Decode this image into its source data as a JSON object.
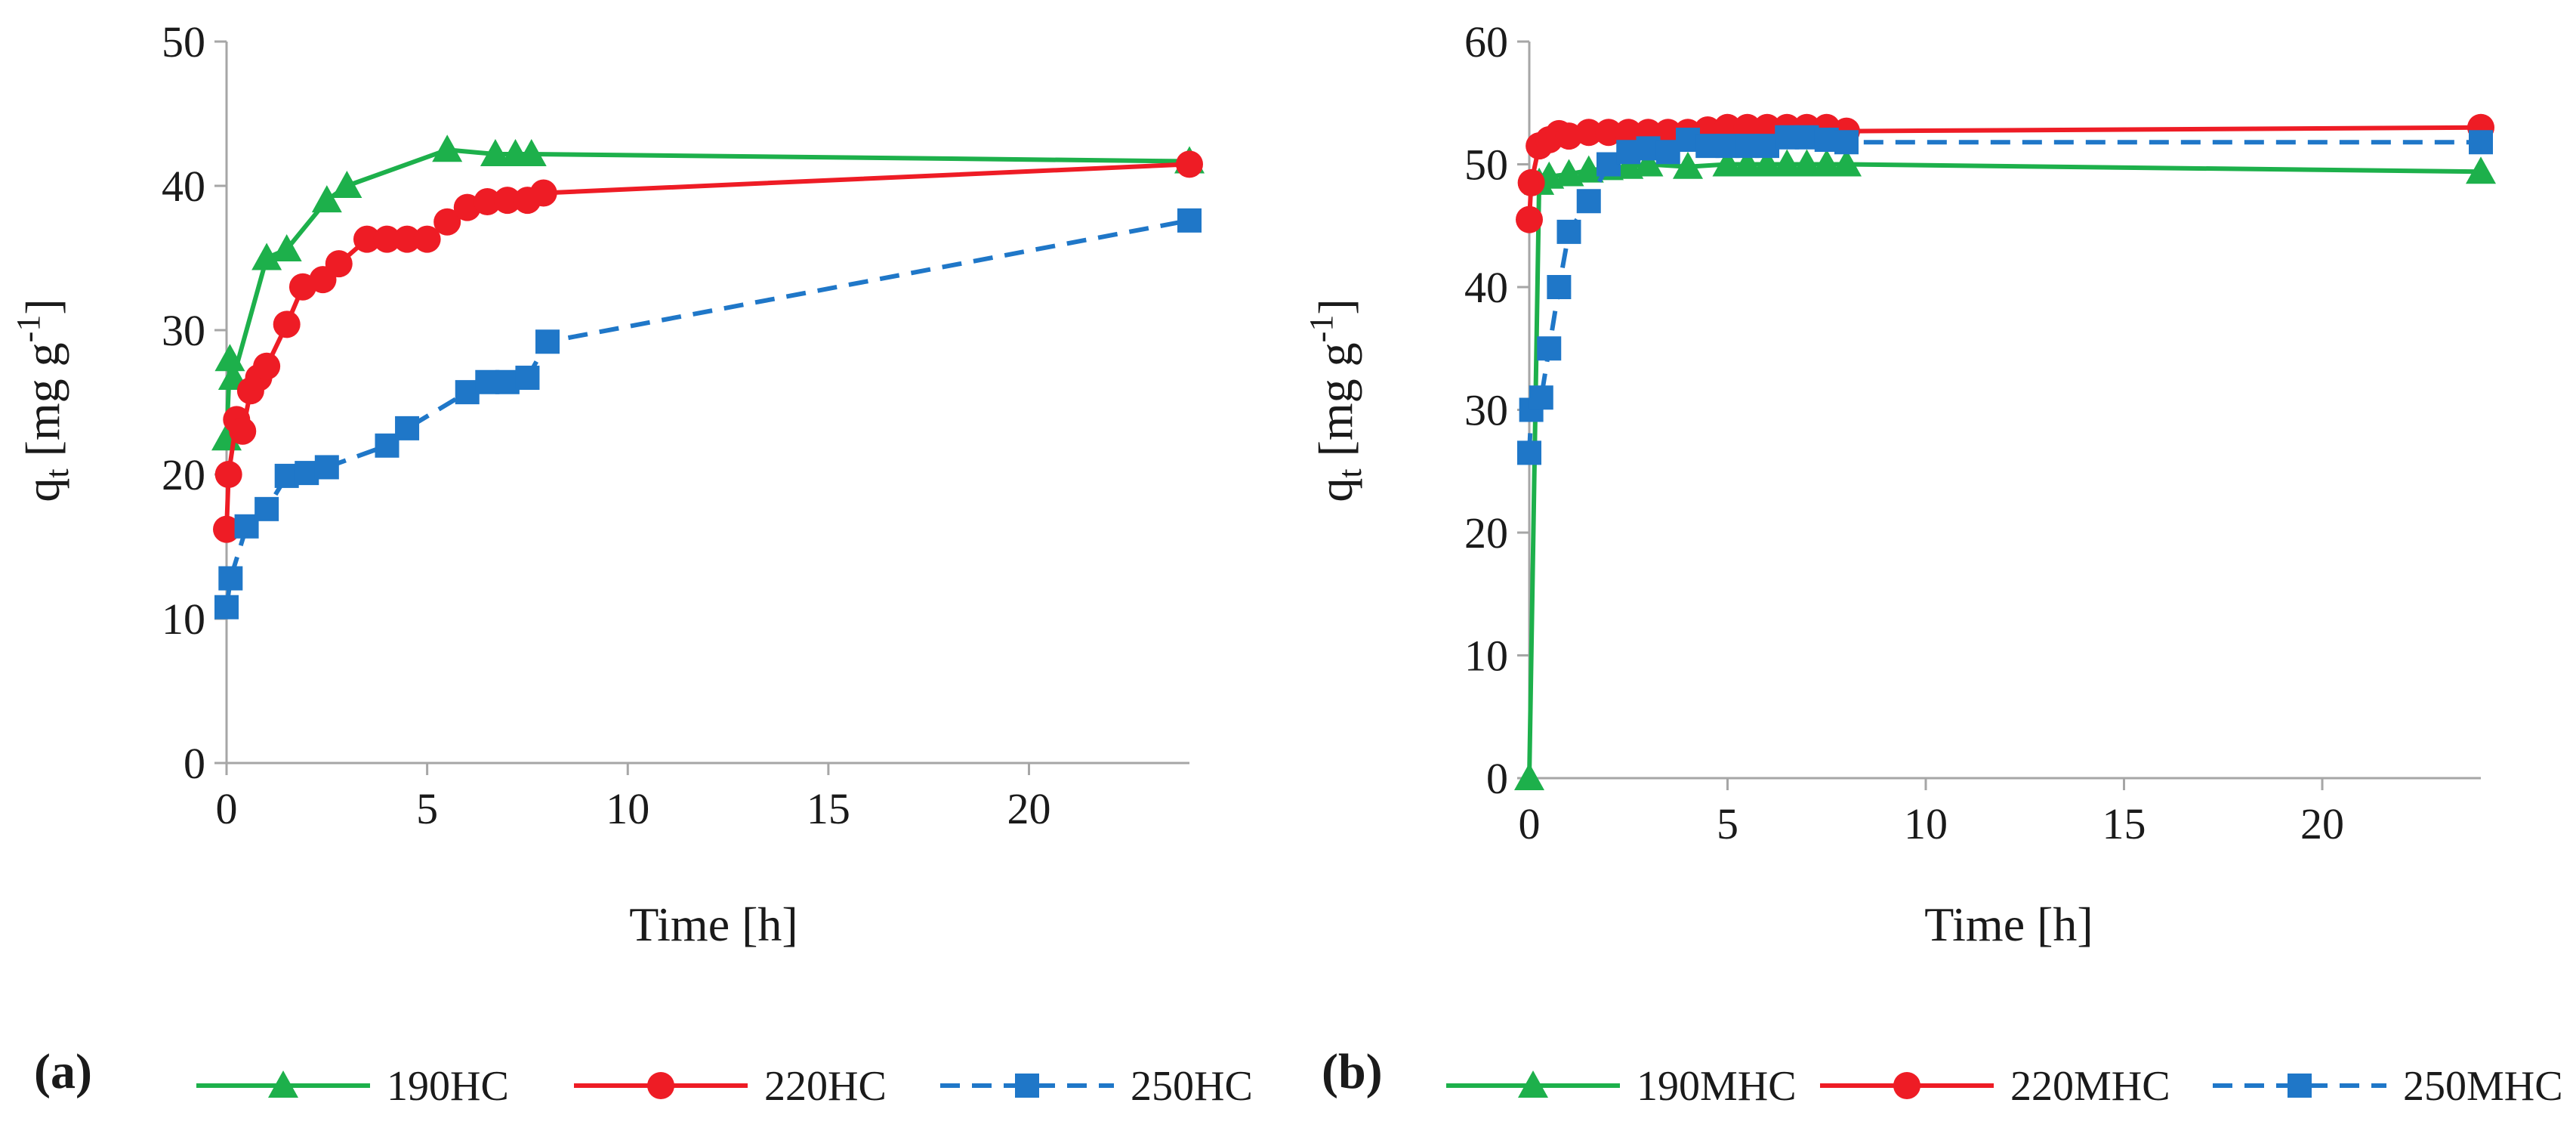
{
  "figure": {
    "panels": [
      {
        "label": "(a)"
      },
      {
        "label": "(b)"
      }
    ]
  },
  "chart_data": [
    {
      "type": "line",
      "panel_label": "(a)",
      "title": "",
      "xlabel": "Time [h]",
      "ylabel": "qt [mg g-1]",
      "ylabel_parts": {
        "q": "q",
        "sub": "t",
        "rest": " [mg g",
        "sup": "-1",
        "end": "]"
      },
      "xlim": [
        0,
        24
      ],
      "ylim": [
        0,
        50
      ],
      "xticks": [
        0,
        5,
        10,
        15,
        20
      ],
      "yticks": [
        0,
        10,
        20,
        30,
        40,
        50
      ],
      "grid": false,
      "legend_position": "bottom",
      "series": [
        {
          "name": "190HC",
          "color": "#1db04b",
          "marker": "triangle",
          "dash": "solid",
          "x": [
            0,
            0.083,
            0.167,
            1,
            1.5,
            2.5,
            3,
            5.5,
            6.7,
            7.2,
            7.6,
            24
          ],
          "y": [
            22.5,
            28,
            26.7,
            35,
            35.6,
            39,
            40,
            42.5,
            42.2,
            42.2,
            42.2,
            41.7
          ]
        },
        {
          "name": "220HC",
          "color": "#ee1c25",
          "marker": "circle",
          "dash": "solid",
          "x": [
            0,
            0.05,
            0.25,
            0.4,
            0.6,
            0.8,
            1,
            1.5,
            1.9,
            2.4,
            2.8,
            3.5,
            4,
            4.5,
            5,
            5.5,
            6,
            6.5,
            7,
            7.5,
            7.9,
            24
          ],
          "y": [
            16.2,
            20,
            23.8,
            23,
            25.8,
            26.7,
            27.5,
            30.4,
            33,
            33.5,
            34.6,
            36.3,
            36.3,
            36.3,
            36.3,
            37.5,
            38.5,
            38.9,
            39,
            39,
            39.5,
            41.5
          ]
        },
        {
          "name": "250HC",
          "color": "#1f77c8",
          "marker": "square",
          "dash": "dashed",
          "x": [
            0,
            0.1,
            0.5,
            1,
            1.5,
            2,
            2.5,
            4,
            4.5,
            6,
            6.5,
            7,
            7.5,
            8,
            24
          ],
          "y": [
            10.8,
            12.8,
            16.4,
            17.6,
            19.9,
            20.1,
            20.5,
            22,
            23.2,
            25.7,
            26.4,
            26.4,
            26.7,
            29.2,
            37.6
          ]
        }
      ]
    },
    {
      "type": "line",
      "panel_label": "(b)",
      "title": "",
      "xlabel": "Time [h]",
      "ylabel": "qt [mg g-1]",
      "ylabel_parts": {
        "q": "q",
        "sub": "t",
        "rest": " [mg g",
        "sup": "-1",
        "end": "]"
      },
      "xlim": [
        0,
        24
      ],
      "ylim": [
        0,
        60
      ],
      "xticks": [
        0,
        5,
        10,
        15,
        20
      ],
      "yticks": [
        0,
        10,
        20,
        30,
        40,
        50,
        60
      ],
      "grid": false,
      "legend_position": "bottom",
      "series": [
        {
          "name": "190MHC",
          "color": "#1db04b",
          "marker": "triangle",
          "dash": "solid",
          "x": [
            0,
            0.25,
            0.5,
            1,
            1.5,
            2,
            2.5,
            3,
            4,
            5,
            5.5,
            6,
            6.5,
            7,
            7.5,
            8,
            24
          ],
          "y": [
            0,
            48.5,
            49,
            49.2,
            49.5,
            49.7,
            49.8,
            50,
            49.8,
            50,
            50,
            50,
            50,
            50,
            50,
            50,
            49.4
          ]
        },
        {
          "name": "220MHC",
          "color": "#ee1c25",
          "marker": "circle",
          "dash": "solid",
          "x": [
            0,
            0.05,
            0.25,
            0.5,
            0.75,
            1,
            1.5,
            2,
            2.5,
            3,
            3.5,
            4,
            4.5,
            5,
            5.5,
            6,
            6.5,
            7,
            7.5,
            8,
            24
          ],
          "y": [
            45.5,
            48.5,
            51.5,
            52,
            52.5,
            52.3,
            52.6,
            52.6,
            52.6,
            52.6,
            52.6,
            52.6,
            52.8,
            53,
            53,
            53,
            53,
            53,
            53,
            52.7,
            53
          ]
        },
        {
          "name": "250MHC",
          "color": "#1f77c8",
          "marker": "square",
          "dash": "dashed",
          "x": [
            0,
            0.05,
            0.3,
            0.5,
            0.75,
            1,
            1.5,
            2,
            2.5,
            3,
            3.5,
            4,
            4.5,
            5,
            5.5,
            6,
            6.5,
            7,
            7.5,
            8,
            24
          ],
          "y": [
            26.5,
            30,
            31,
            35,
            40,
            44.5,
            47,
            50,
            51,
            51.3,
            51,
            52,
            51.5,
            51.5,
            51.5,
            51.5,
            52.2,
            52.2,
            52,
            51.8,
            51.8
          ]
        }
      ]
    }
  ]
}
